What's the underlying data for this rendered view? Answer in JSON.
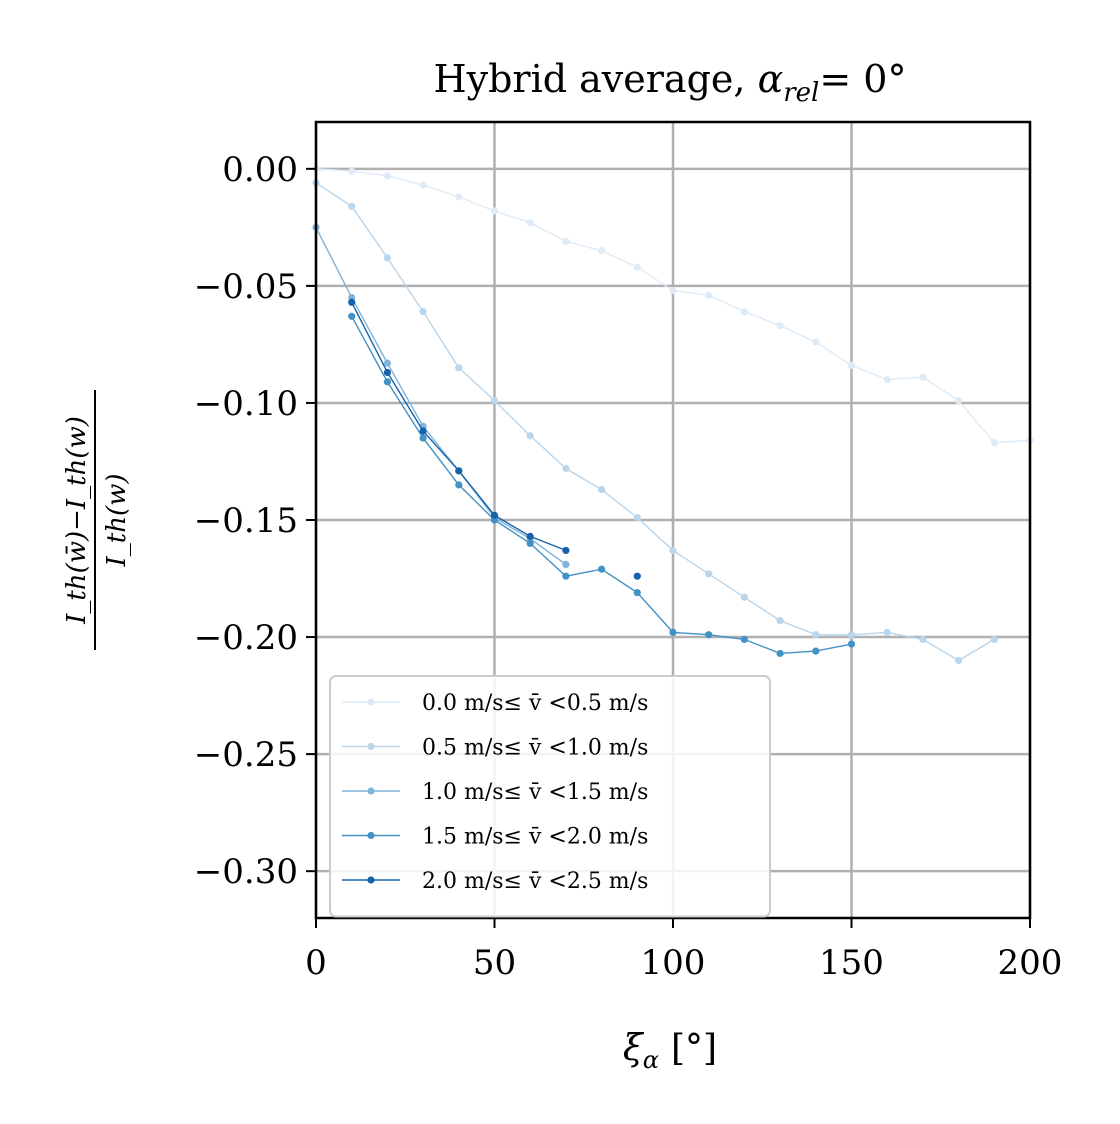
{
  "chart_data": {
    "type": "line",
    "title": "Hybrid average, α_rel= 0°",
    "title_parts": {
      "main": "Hybrid average, ",
      "symbol": "α",
      "subscript": "rel",
      "suffix": "= 0°"
    },
    "xlabel": "ξ_α [°]",
    "xlabel_parts": {
      "symbol": "ξ",
      "subscript": "α",
      "unit": "[°]"
    },
    "ylabel": "(I_th(w̄) − I_th(w)‾) / I_th(w)‾",
    "ylabel_parts": {
      "numerator": "I_th(w̄)−I_th(w)",
      "denominator": "I_th(w)"
    },
    "xlim": [
      0,
      200
    ],
    "ylim": [
      -0.32,
      0.02
    ],
    "xticks": [
      0,
      50,
      100,
      150,
      200
    ],
    "xtick_labels": [
      "0",
      "50",
      "100",
      "150",
      "200"
    ],
    "yticks": [
      0.0,
      -0.05,
      -0.1,
      -0.15,
      -0.2,
      -0.25,
      -0.3
    ],
    "ytick_labels": [
      "0.00",
      "−0.05",
      "−0.10",
      "−0.15",
      "−0.20",
      "−0.25",
      "−0.30"
    ],
    "grid": true,
    "legend_position": "lower-left",
    "series": [
      {
        "name": "0.0 m/s≤ v̄ <0.5 m/s",
        "color": "#deebf7",
        "x": [
          0,
          10,
          20,
          30,
          40,
          50,
          60,
          70,
          80,
          90,
          100,
          110,
          120,
          130,
          140,
          150,
          160,
          170,
          180,
          190,
          200
        ],
        "y": [
          0.0,
          -0.001,
          -0.003,
          -0.007,
          -0.012,
          -0.018,
          -0.023,
          -0.031,
          -0.035,
          -0.042,
          -0.052,
          -0.054,
          -0.061,
          -0.067,
          -0.074,
          -0.084,
          -0.09,
          -0.089,
          -0.099,
          -0.117,
          -0.116
        ]
      },
      {
        "name": "0.5 m/s≤ v̄ <1.0 m/s",
        "color": "#b9d6ec",
        "x": [
          0,
          10,
          20,
          30,
          40,
          50,
          60,
          70,
          80,
          90,
          100,
          110,
          120,
          130,
          140,
          150,
          160,
          170,
          180,
          190
        ],
        "y": [
          -0.006,
          -0.016,
          -0.038,
          -0.061,
          -0.085,
          -0.099,
          -0.114,
          -0.128,
          -0.137,
          -0.149,
          -0.163,
          -0.173,
          -0.183,
          -0.193,
          -0.199,
          -0.199,
          -0.198,
          -0.201,
          -0.21,
          -0.201
        ]
      },
      {
        "name": "1.0 m/s≤ v̄ <1.5 m/s",
        "color": "#7fb4db",
        "x": [
          0,
          10,
          20,
          30,
          40,
          50,
          60,
          70
        ],
        "y": [
          -0.025,
          -0.055,
          -0.083,
          -0.11,
          -0.129,
          -0.149,
          -0.158,
          -0.169
        ]
      },
      {
        "name": "1.5 m/s≤ v̄ <2.0 m/s",
        "color": "#4292c6",
        "x": [
          10,
          20,
          30,
          40,
          50,
          60,
          70,
          80,
          90,
          100,
          110,
          120,
          130,
          140,
          150
        ],
        "y": [
          -0.063,
          -0.091,
          -0.115,
          -0.135,
          -0.15,
          -0.16,
          -0.174,
          -0.171,
          -0.181,
          -0.198,
          -0.199,
          -0.201,
          -0.207,
          -0.206,
          -0.203
        ]
      },
      {
        "name": "2.0 m/s≤ v̄ <2.5 m/s",
        "color": "#1663ab",
        "x": [
          10,
          20,
          30,
          40,
          50,
          60,
          70
        ],
        "y": [
          -0.057,
          -0.087,
          -0.112,
          -0.129,
          -0.148,
          -0.157,
          -0.163
        ],
        "extra_points": [
          {
            "x": 90,
            "y": -0.174
          }
        ]
      }
    ]
  }
}
